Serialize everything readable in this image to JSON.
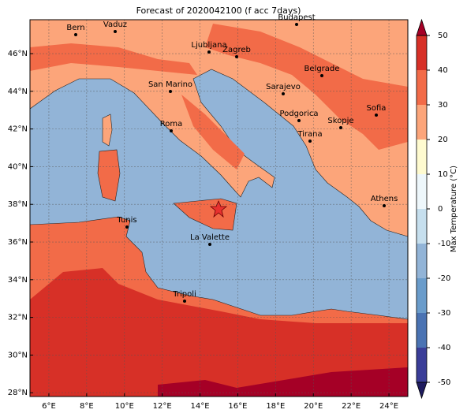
{
  "title": "Forecast of 2020042100 (f acc 7days)",
  "map": {
    "xlim": [
      5,
      25
    ],
    "ylim": [
      27.8,
      47.8
    ],
    "xticks": [
      {
        "value": 6,
        "label": "6°E"
      },
      {
        "value": 8,
        "label": "8°E"
      },
      {
        "value": 10,
        "label": "10°E"
      },
      {
        "value": 12,
        "label": "12°E"
      },
      {
        "value": 14,
        "label": "14°E"
      },
      {
        "value": 16,
        "label": "16°E"
      },
      {
        "value": 18,
        "label": "18°E"
      },
      {
        "value": 20,
        "label": "20°E"
      },
      {
        "value": 22,
        "label": "22°E"
      },
      {
        "value": 24,
        "label": "24°E"
      }
    ],
    "yticks": [
      {
        "value": 28,
        "label": "28°N"
      },
      {
        "value": 30,
        "label": "30°N"
      },
      {
        "value": 32,
        "label": "32°N"
      },
      {
        "value": 34,
        "label": "34°N"
      },
      {
        "value": 36,
        "label": "36°N"
      },
      {
        "value": 38,
        "label": "38°N"
      },
      {
        "value": 40,
        "label": "40°N"
      },
      {
        "value": 42,
        "label": "42°N"
      },
      {
        "value": 44,
        "label": "44°N"
      },
      {
        "value": 46,
        "label": "46°N"
      }
    ],
    "grid": true,
    "cities": [
      "Bern",
      "Vaduz",
      "Budapest",
      "Ljubljana",
      "Zagreb",
      "San Marino",
      "Belgrade",
      "Sarajevo",
      "Sofia",
      "Podgorica",
      "Skopje",
      "Roma",
      "Tirana",
      "Athens",
      "Tunis",
      "La Valette",
      "Tripoli"
    ]
  },
  "colorbar": {
    "label": "Max Temperature (°C)",
    "lim": [
      -50,
      50
    ],
    "ticks": [
      -50,
      -40,
      -30,
      -20,
      -10,
      0,
      10,
      20,
      30,
      40,
      50
    ],
    "colors": [
      "#3a3d98",
      "#4a73b3",
      "#6a9ccb",
      "#92b4d7",
      "#c6dfee",
      "#eef7fb",
      "#fffbd0",
      "#fca57a",
      "#f26b48",
      "#d73027"
    ],
    "over_color": "#a50026",
    "under_color": "#1e1b5e"
  }
}
